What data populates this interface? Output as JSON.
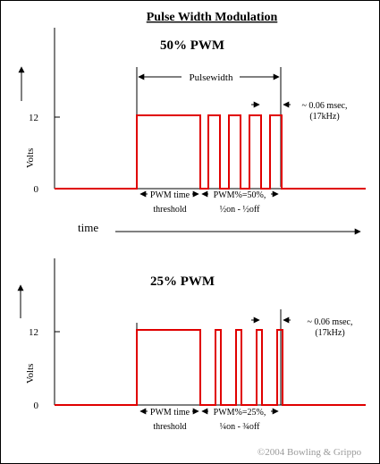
{
  "title": "Pulse Width Modulation",
  "copyright": "©2004 Bowling & Grippo",
  "time_label": "time",
  "colors": {
    "signal": "#e00000",
    "axis": "#000000",
    "background": "#ffffff"
  },
  "panels": [
    {
      "heading": "50% PWM",
      "y_axis_label": "Volts",
      "y_high": "12",
      "y_low": "0",
      "pulsewidth_label": "Pulsewidth",
      "period_label_line1": "~ 0.06 msec,",
      "period_label_line2": "(17kHz)",
      "threshold_line1": "PWM time",
      "threshold_line2": "threshold",
      "duty_line1": "PWM%=50%,",
      "duty_line2": "½on - ½off",
      "duty_fraction": 0.5
    },
    {
      "heading": "25% PWM",
      "y_axis_label": "Volts",
      "y_high": "12",
      "y_low": "0",
      "period_label_line1": "~ 0.06 msec,",
      "period_label_line2": "(17kHz)",
      "threshold_line1": "PWM time",
      "threshold_line2": "threshold",
      "duty_line1": "PWM%=25%,",
      "duty_line2": "¼on - ¾off",
      "duty_fraction": 0.25
    }
  ]
}
